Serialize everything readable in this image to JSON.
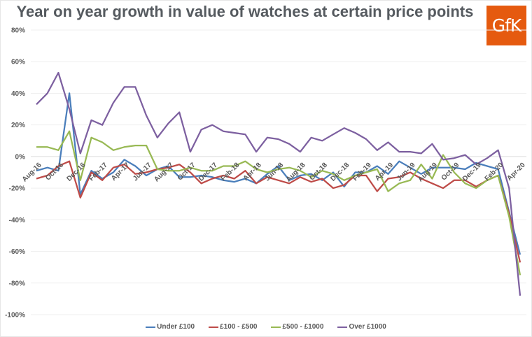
{
  "chart_data": {
    "type": "line",
    "title": "Year on year growth in value of watches at certain price points",
    "xlabel": "",
    "ylabel": "",
    "ylim": [
      -100,
      80
    ],
    "yticks": [
      "80%",
      "60%",
      "40%",
      "20%",
      "0%",
      "-20%",
      "-40%",
      "-60%",
      "-80%",
      "-100%"
    ],
    "ytick_values": [
      80,
      60,
      40,
      20,
      0,
      -20,
      -40,
      -60,
      -80,
      -100
    ],
    "grid": true,
    "legend_position": "bottom",
    "x": [
      "Aug-16",
      "Sep-16",
      "Oct-16",
      "Nov-16",
      "Dec-16",
      "Jan-17",
      "Feb-17",
      "Mar-17",
      "Apr-17",
      "May-17",
      "Jun-17",
      "Jul-17",
      "Aug-17",
      "Sep-17",
      "Oct-17",
      "Nov-17",
      "Dec-17",
      "Jan-18",
      "Feb-18",
      "Mar-18",
      "Apr-18",
      "May-18",
      "Jun-18",
      "Jul-18",
      "Aug-18",
      "Sep-18",
      "Oct-18",
      "Nov-18",
      "Dec-18",
      "Jan-19",
      "Feb-19",
      "Mar-19",
      "Apr-19",
      "May-19",
      "Jun-19",
      "Jul-19",
      "Aug-19",
      "Sep-19",
      "Oct-19",
      "Nov-19",
      "Dec-19",
      "Jan-20",
      "Feb-20",
      "Mar-20",
      "Apr-20"
    ],
    "xtick_labels": [
      "Aug-16",
      "Oct-16",
      "Dec-16",
      "Feb-17",
      "Apr-17",
      "Jun-17",
      "Aug-17",
      "Oct-17",
      "Dec-17",
      "Feb-18",
      "Apr-18",
      "Jun-18",
      "Aug-18",
      "Oct-18",
      "Dec-18",
      "Feb-19",
      "Apr-19",
      "Jun-19",
      "Aug-19",
      "Oct-19",
      "Dec-19",
      "Feb-20",
      "Apr-20"
    ],
    "series": [
      {
        "name": "Under £100",
        "color": "#4a7ebb",
        "values": [
          -9,
          -7,
          -9,
          40,
          -24,
          -9,
          -14,
          -10,
          -2,
          -6,
          -12,
          -8,
          -6,
          -13,
          -13,
          -12,
          -13,
          -15,
          -16,
          -14,
          -17,
          -11,
          -6,
          -15,
          -12,
          -11,
          -15,
          -10,
          -19,
          -10,
          -10,
          -6,
          -11,
          -3,
          -7,
          -11,
          -7,
          -7,
          -7,
          -8,
          -4,
          -6,
          -8,
          -35,
          -62
        ]
      },
      {
        "name": "£100 - £500",
        "color": "#be4b48",
        "values": [
          -14,
          -12,
          -6,
          -3,
          -26,
          -10,
          -15,
          -7,
          -5,
          -11,
          -10,
          -8,
          -7,
          -5,
          -10,
          -17,
          -14,
          -12,
          -14,
          -9,
          -17,
          -13,
          -15,
          -17,
          -13,
          -16,
          -14,
          -20,
          -18,
          -12,
          -12,
          -22,
          -14,
          -13,
          -10,
          -14,
          -17,
          -20,
          -15,
          -15,
          -19,
          -15,
          -12,
          -36,
          -67
        ]
      },
      {
        "name": "£500 - £1000",
        "color": "#98b954",
        "values": [
          6,
          6,
          4,
          16,
          -15,
          12,
          9,
          4,
          6,
          7,
          7,
          -8,
          -9,
          -9,
          -7,
          -9,
          -9,
          -6,
          -6,
          -3,
          -8,
          -10,
          -8,
          -7,
          -9,
          -13,
          -9,
          -11,
          -15,
          -12,
          -10,
          -8,
          -22,
          -17,
          -15,
          -5,
          -14,
          1,
          -10,
          -17,
          -20,
          -15,
          -12,
          -38,
          -75
        ]
      },
      {
        "name": "Over £1000",
        "color": "#7d60a0",
        "values": [
          33,
          40,
          53,
          30,
          2,
          23,
          20,
          34,
          44,
          44,
          26,
          12,
          21,
          28,
          3,
          17,
          20,
          16,
          15,
          14,
          3,
          12,
          11,
          8,
          3,
          12,
          10,
          14,
          18,
          15,
          11,
          4,
          9,
          3,
          3,
          2,
          8,
          -2,
          -1,
          1,
          -5,
          -1,
          4,
          -20,
          -88
        ]
      }
    ]
  },
  "header": {
    "title": "Year on year growth in value of watches at certain price points",
    "logo_text": "GfK"
  },
  "legend": {
    "items": [
      "Under £100",
      "£100 - £500",
      "£500 - £1000",
      "Over £1000"
    ],
    "colors": [
      "#4a7ebb",
      "#be4b48",
      "#98b954",
      "#7d60a0"
    ]
  }
}
